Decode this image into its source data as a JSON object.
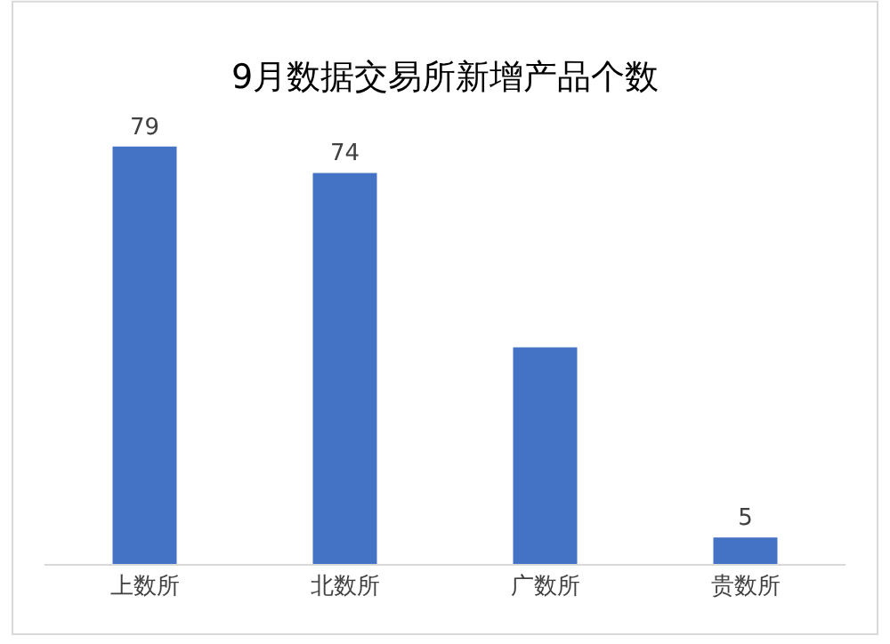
{
  "chart_data": {
    "type": "bar",
    "title": "9月数据交易所新增产品个数",
    "categories": [
      "上数所",
      "北数所",
      "广数所",
      "贵数所"
    ],
    "values": [
      79,
      74,
      41,
      5
    ],
    "value_labels": [
      "79",
      "74",
      null,
      "5"
    ],
    "color": "#4472c4",
    "grid": false,
    "legend": false
  }
}
